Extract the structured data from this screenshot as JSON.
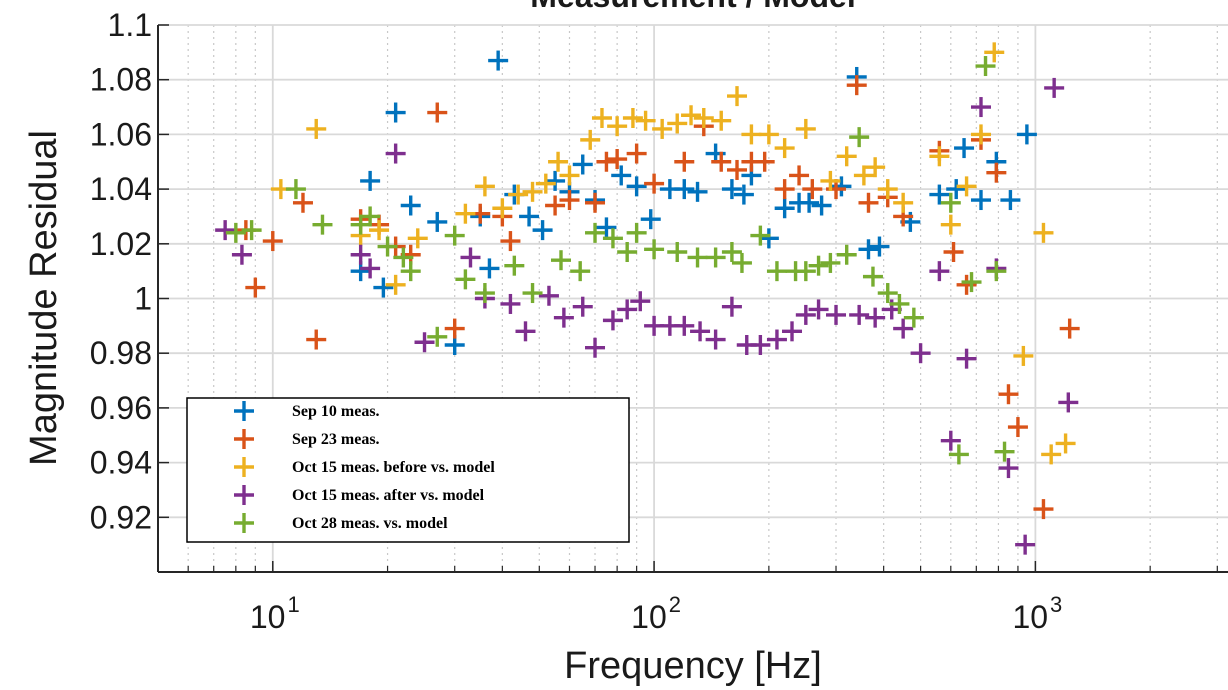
{
  "chart_data": {
    "type": "scatter",
    "title": "Measurement / Model",
    "xlabel": "Frequency [Hz]",
    "ylabel": "Magnitude Residual",
    "xscale": "log",
    "xlim": [
      5,
      3200
    ],
    "ylim": [
      0.9,
      1.1
    ],
    "yticks": [
      0.92,
      0.94,
      0.96,
      0.98,
      1,
      1.02,
      1.04,
      1.06,
      1.08,
      1.1
    ],
    "ytick_labels": [
      "0.92",
      "0.94",
      "0.96",
      "0.98",
      "1",
      "1.02",
      "1.04",
      "1.06",
      "1.08",
      "1.1"
    ],
    "xticks_major": [
      10,
      100,
      1000
    ],
    "xtick_labels": [
      {
        "base": "10",
        "exp": "1"
      },
      {
        "base": "10",
        "exp": "2"
      },
      {
        "base": "10",
        "exp": "3"
      }
    ],
    "grid": true,
    "legend_position": "bottom-left",
    "marker": "plus",
    "series": [
      {
        "name": "Sep 10 meas.",
        "color": "#0072BD",
        "points": [
          [
            17,
            1.01
          ],
          [
            18,
            1.043
          ],
          [
            19.5,
            1.004
          ],
          [
            21,
            1.068
          ],
          [
            23,
            1.034
          ],
          [
            27,
            1.028
          ],
          [
            30,
            0.983
          ],
          [
            35,
            1.03
          ],
          [
            37,
            1.011
          ],
          [
            39,
            1.087
          ],
          [
            43,
            1.038
          ],
          [
            47,
            1.03
          ],
          [
            51,
            1.025
          ],
          [
            55,
            1.043
          ],
          [
            60,
            1.039
          ],
          [
            65,
            1.049
          ],
          [
            70,
            1.036
          ],
          [
            75,
            1.026
          ],
          [
            82,
            1.045
          ],
          [
            90,
            1.041
          ],
          [
            98,
            1.029
          ],
          [
            110,
            1.04
          ],
          [
            120,
            1.04
          ],
          [
            130,
            1.039
          ],
          [
            145,
            1.053
          ],
          [
            160,
            1.04
          ],
          [
            172,
            1.038
          ],
          [
            180,
            1.045
          ],
          [
            200,
            1.022
          ],
          [
            220,
            1.033
          ],
          [
            240,
            1.035
          ],
          [
            255,
            1.035
          ],
          [
            275,
            1.034
          ],
          [
            310,
            1.041
          ],
          [
            340,
            1.081
          ],
          [
            365,
            1.018
          ],
          [
            390,
            1.019
          ],
          [
            470,
            1.028
          ],
          [
            560,
            1.038
          ],
          [
            620,
            1.04
          ],
          [
            650,
            1.055
          ],
          [
            720,
            1.036
          ],
          [
            790,
            1.05
          ],
          [
            860,
            1.036
          ],
          [
            950,
            1.06
          ]
        ]
      },
      {
        "name": "Sep 23 meas.",
        "color": "#D95319",
        "points": [
          [
            8.5,
            1.025
          ],
          [
            9,
            1.004
          ],
          [
            10,
            1.021
          ],
          [
            12,
            1.035
          ],
          [
            13,
            0.985
          ],
          [
            17,
            1.029
          ],
          [
            19,
            1.027
          ],
          [
            21,
            1.019
          ],
          [
            23,
            1.016
          ],
          [
            27,
            1.068
          ],
          [
            30,
            0.989
          ],
          [
            35,
            1.031
          ],
          [
            40,
            1.03
          ],
          [
            42,
            1.021
          ],
          [
            55,
            1.034
          ],
          [
            60,
            1.036
          ],
          [
            70,
            1.035
          ],
          [
            75,
            1.05
          ],
          [
            80,
            1.051
          ],
          [
            90,
            1.053
          ],
          [
            100,
            1.042
          ],
          [
            120,
            1.05
          ],
          [
            135,
            1.063
          ],
          [
            150,
            1.05
          ],
          [
            165,
            1.047
          ],
          [
            180,
            1.05
          ],
          [
            195,
            1.05
          ],
          [
            220,
            1.04
          ],
          [
            240,
            1.045
          ],
          [
            260,
            1.04
          ],
          [
            300,
            1.04
          ],
          [
            340,
            1.078
          ],
          [
            365,
            1.035
          ],
          [
            410,
            1.037
          ],
          [
            450,
            1.03
          ],
          [
            560,
            1.054
          ],
          [
            610,
            1.017
          ],
          [
            660,
            1.005
          ],
          [
            720,
            1.058
          ],
          [
            790,
            1.046
          ],
          [
            850,
            0.965
          ],
          [
            900,
            0.953
          ],
          [
            1050,
            0.923
          ],
          [
            1230,
            0.989
          ]
        ]
      },
      {
        "name": "Oct 15 meas. before vs. model",
        "color": "#EDB120",
        "points": [
          [
            10.5,
            1.04
          ],
          [
            13,
            1.062
          ],
          [
            17,
            1.023
          ],
          [
            19,
            1.025
          ],
          [
            21,
            1.005
          ],
          [
            24,
            1.022
          ],
          [
            32,
            1.031
          ],
          [
            36,
            1.041
          ],
          [
            40,
            1.033
          ],
          [
            44,
            1.038
          ],
          [
            48,
            1.039
          ],
          [
            52,
            1.042
          ],
          [
            56,
            1.05
          ],
          [
            60,
            1.045
          ],
          [
            68,
            1.058
          ],
          [
            73,
            1.066
          ],
          [
            80,
            1.063
          ],
          [
            88,
            1.066
          ],
          [
            95,
            1.065
          ],
          [
            105,
            1.062
          ],
          [
            115,
            1.064
          ],
          [
            125,
            1.067
          ],
          [
            135,
            1.066
          ],
          [
            150,
            1.065
          ],
          [
            165,
            1.074
          ],
          [
            180,
            1.06
          ],
          [
            200,
            1.06
          ],
          [
            220,
            1.055
          ],
          [
            250,
            1.062
          ],
          [
            290,
            1.043
          ],
          [
            320,
            1.052
          ],
          [
            355,
            1.045
          ],
          [
            380,
            1.048
          ],
          [
            410,
            1.04
          ],
          [
            450,
            1.035
          ],
          [
            560,
            1.052
          ],
          [
            600,
            1.027
          ],
          [
            660,
            1.041
          ],
          [
            720,
            1.06
          ],
          [
            780,
            1.09
          ],
          [
            930,
            0.979
          ],
          [
            1050,
            1.024
          ],
          [
            1100,
            0.943
          ],
          [
            1200,
            0.947
          ]
        ]
      },
      {
        "name": "Oct 15 meas. after vs. model",
        "color": "#7E2F8E",
        "points": [
          [
            7.5,
            1.025
          ],
          [
            8.3,
            1.016
          ],
          [
            17,
            1.016
          ],
          [
            18,
            1.011
          ],
          [
            21,
            1.053
          ],
          [
            25,
            0.984
          ],
          [
            33,
            1.015
          ],
          [
            36,
            1
          ],
          [
            42,
            0.998
          ],
          [
            46,
            0.988
          ],
          [
            53,
            1.001
          ],
          [
            58,
            0.993
          ],
          [
            65,
            0.997
          ],
          [
            70,
            0.982
          ],
          [
            78,
            0.992
          ],
          [
            85,
            0.996
          ],
          [
            92,
            0.999
          ],
          [
            100,
            0.99
          ],
          [
            110,
            0.99
          ],
          [
            120,
            0.99
          ],
          [
            132,
            0.988
          ],
          [
            145,
            0.985
          ],
          [
            160,
            0.997
          ],
          [
            175,
            0.983
          ],
          [
            190,
            0.983
          ],
          [
            210,
            0.985
          ],
          [
            230,
            0.988
          ],
          [
            250,
            0.994
          ],
          [
            270,
            0.996
          ],
          [
            300,
            0.994
          ],
          [
            345,
            0.994
          ],
          [
            380,
            0.993
          ],
          [
            420,
            0.996
          ],
          [
            450,
            0.989
          ],
          [
            500,
            0.98
          ],
          [
            560,
            1.01
          ],
          [
            600,
            0.948
          ],
          [
            660,
            0.978
          ],
          [
            720,
            1.07
          ],
          [
            790,
            1.011
          ],
          [
            850,
            0.938
          ],
          [
            940,
            0.91
          ],
          [
            1120,
            1.077
          ],
          [
            1220,
            0.962
          ]
        ]
      },
      {
        "name": "Oct 28 meas. vs. model",
        "color": "#77AC30",
        "points": [
          [
            8,
            1.024
          ],
          [
            8.8,
            1.025
          ],
          [
            11.5,
            1.04
          ],
          [
            13.5,
            1.027
          ],
          [
            17,
            1.027
          ],
          [
            18,
            1.03
          ],
          [
            20,
            1.019
          ],
          [
            22,
            1.015
          ],
          [
            23,
            1.01
          ],
          [
            27,
            0.986
          ],
          [
            30,
            1.023
          ],
          [
            32,
            1.007
          ],
          [
            36,
            1.002
          ],
          [
            43,
            1.012
          ],
          [
            48,
            1.002
          ],
          [
            57,
            1.014
          ],
          [
            64,
            1.01
          ],
          [
            70,
            1.024
          ],
          [
            78,
            1.022
          ],
          [
            85,
            1.017
          ],
          [
            90,
            1.024
          ],
          [
            100,
            1.018
          ],
          [
            115,
            1.017
          ],
          [
            130,
            1.015
          ],
          [
            145,
            1.015
          ],
          [
            160,
            1.017
          ],
          [
            170,
            1.013
          ],
          [
            190,
            1.023
          ],
          [
            210,
            1.01
          ],
          [
            235,
            1.01
          ],
          [
            250,
            1.01
          ],
          [
            270,
            1.012
          ],
          [
            290,
            1.013
          ],
          [
            320,
            1.016
          ],
          [
            345,
            1.059
          ],
          [
            375,
            1.008
          ],
          [
            410,
            1.002
          ],
          [
            440,
            0.998
          ],
          [
            480,
            0.993
          ],
          [
            600,
            1.035
          ],
          [
            630,
            0.943
          ],
          [
            680,
            1.006
          ],
          [
            740,
            1.085
          ],
          [
            790,
            1.01
          ],
          [
            830,
            0.944
          ]
        ]
      }
    ]
  }
}
